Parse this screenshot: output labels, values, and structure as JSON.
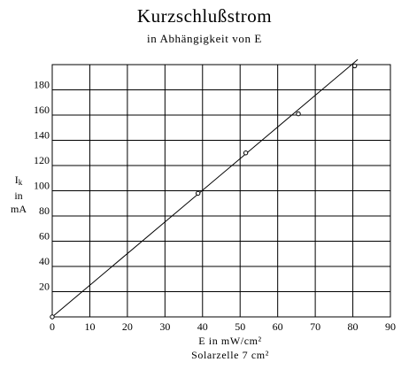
{
  "chart_data": {
    "type": "line",
    "title": "Kurzschlußstrom",
    "subtitle": "in Abhängigkeit von E",
    "ylabel": {
      "main": "I",
      "sub": "k",
      "line2": "in",
      "line3": "mA"
    },
    "xlabel": "E in mW/cm²",
    "xlabel_line2": "Solarzelle 7 cm²",
    "xlim": [
      0,
      90
    ],
    "ylim": [
      0,
      200
    ],
    "x_ticks": [
      0,
      10,
      20,
      30,
      40,
      50,
      60,
      70,
      80,
      90
    ],
    "y_ticks": [
      20,
      40,
      60,
      80,
      100,
      120,
      140,
      160,
      180
    ],
    "x_tick_labels": [
      "0",
      "10",
      "20",
      "30",
      "40",
      "50",
      "60",
      "70",
      "80",
      "90"
    ],
    "y_tick_labels": [
      "20",
      "40",
      "60",
      "80",
      "100",
      "120",
      "140",
      "160",
      "180"
    ],
    "grid": true,
    "series": [
      {
        "points": [
          {
            "x": 0,
            "y": 0
          },
          {
            "x": 38.8,
            "y": 98
          },
          {
            "x": 51.5,
            "y": 130
          },
          {
            "x": 65.5,
            "y": 161
          },
          {
            "x": 80.5,
            "y": 199
          }
        ],
        "fit_line": {
          "x": [
            0,
            81.3
          ],
          "y": [
            0,
            204
          ]
        }
      }
    ]
  }
}
